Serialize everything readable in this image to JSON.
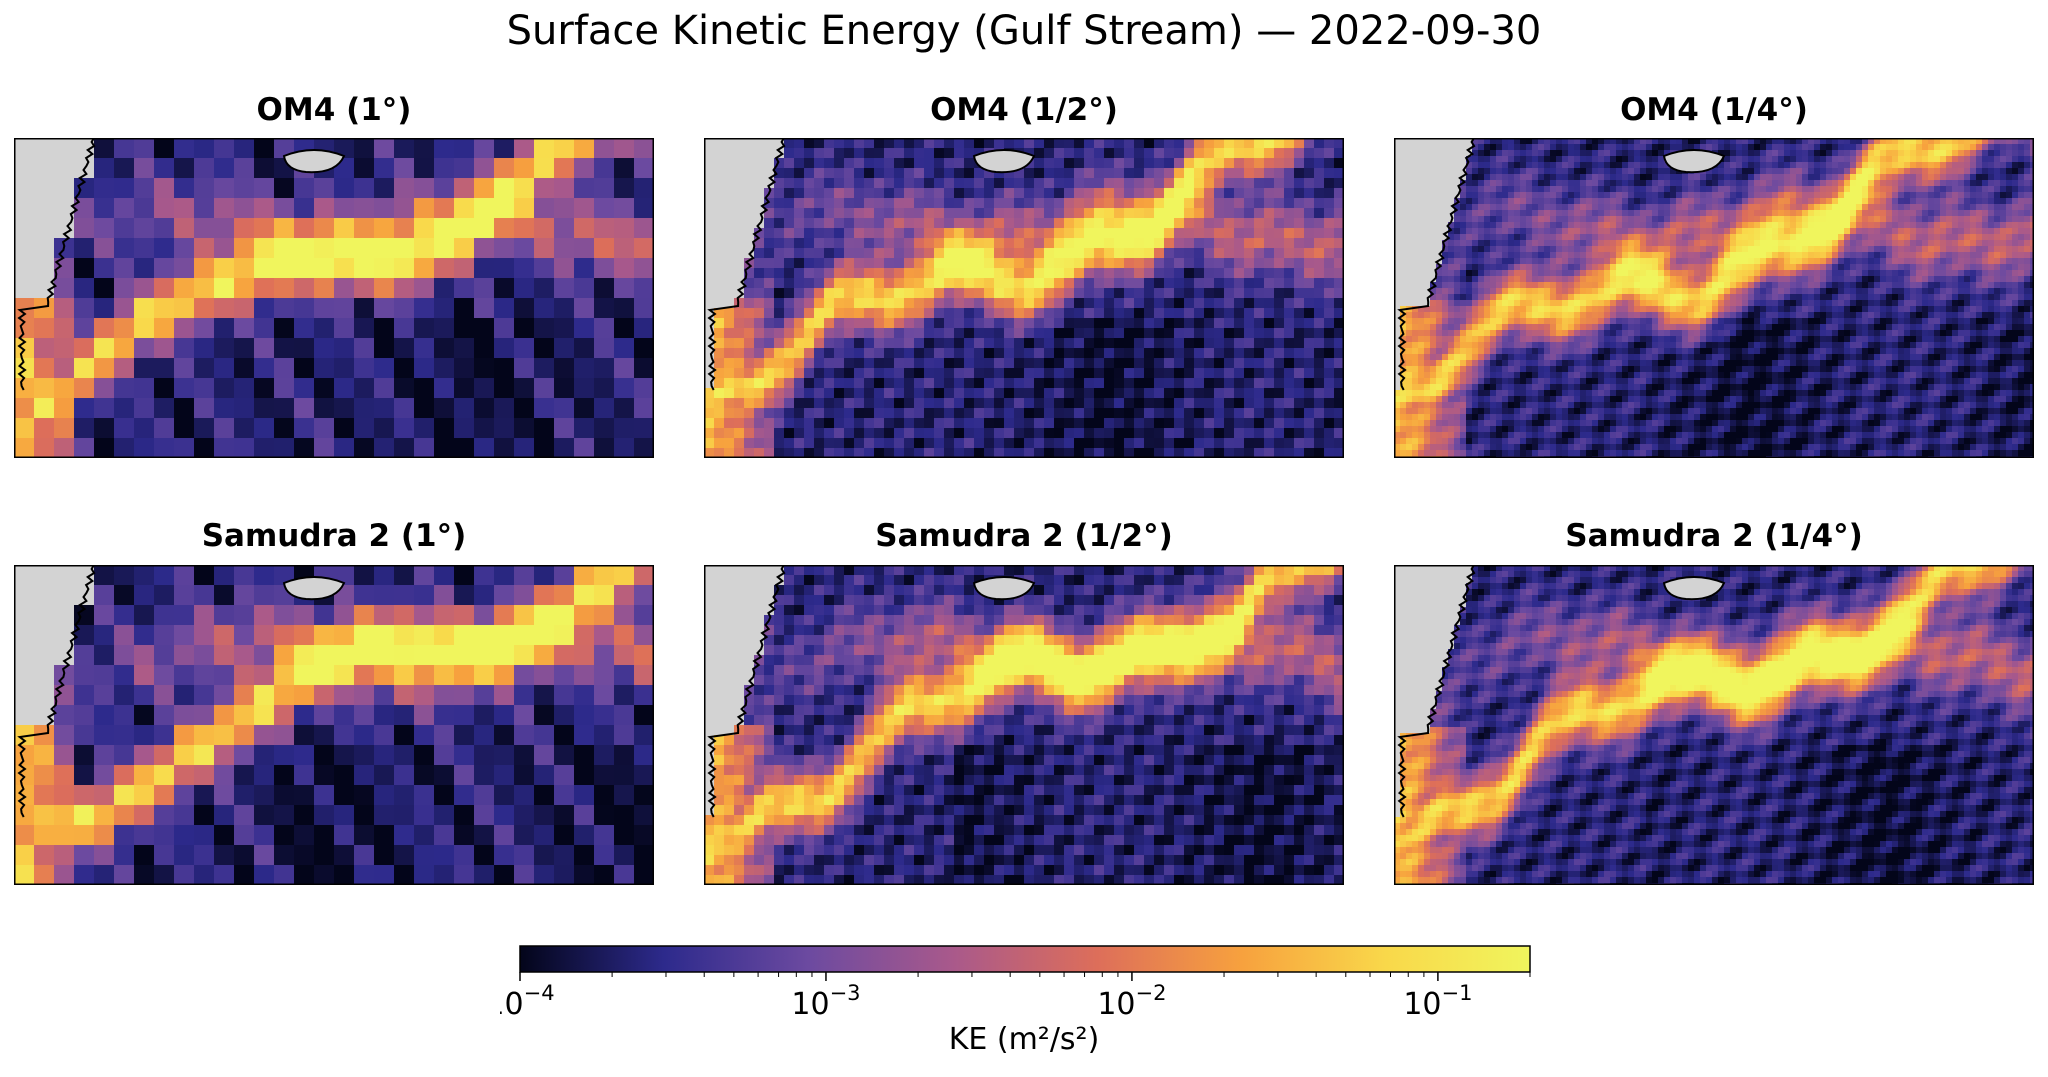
{
  "figure": {
    "title": "Surface Kinetic Energy (Gulf Stream) — 2022-09-30"
  },
  "chart_data": {
    "type": "heatmap",
    "title": "Surface Kinetic Energy (Gulf Stream) — 2022-09-30",
    "panels": [
      {
        "title": "OM4 (1°)",
        "model": "OM4",
        "resolution_deg": 1.0
      },
      {
        "title": "OM4 (1/2°)",
        "model": "OM4",
        "resolution_deg": 0.5
      },
      {
        "title": "OM4 (1/4°)",
        "model": "OM4",
        "resolution_deg": 0.25
      },
      {
        "title": "Samudra 2 (1°)",
        "model": "Samudra 2",
        "resolution_deg": 1.0
      },
      {
        "title": "Samudra 2 (1/2°)",
        "model": "Samudra 2",
        "resolution_deg": 0.5
      },
      {
        "title": "Samudra 2 (1/4°)",
        "model": "Samudra 2",
        "resolution_deg": 0.25
      }
    ],
    "colorbar": {
      "label": "KE (m²/s²)",
      "scale": "log",
      "range": [
        0.0001,
        0.2
      ],
      "ticks": [
        {
          "value": 0.0001,
          "base": "10",
          "exp": "−4"
        },
        {
          "value": 0.001,
          "base": "10",
          "exp": "−3"
        },
        {
          "value": 0.01,
          "base": "10",
          "exp": "−2"
        },
        {
          "value": 0.1,
          "base": "10",
          "exp": "−1"
        }
      ],
      "colormap": [
        "#03051a",
        "#2d2a8c",
        "#6c4aa0",
        "#a9598b",
        "#dd6e5a",
        "#f7a13e",
        "#f9d84a",
        "#f0f55d"
      ]
    },
    "land_color": "#d3d3d3",
    "coastline_color": "#000000"
  }
}
